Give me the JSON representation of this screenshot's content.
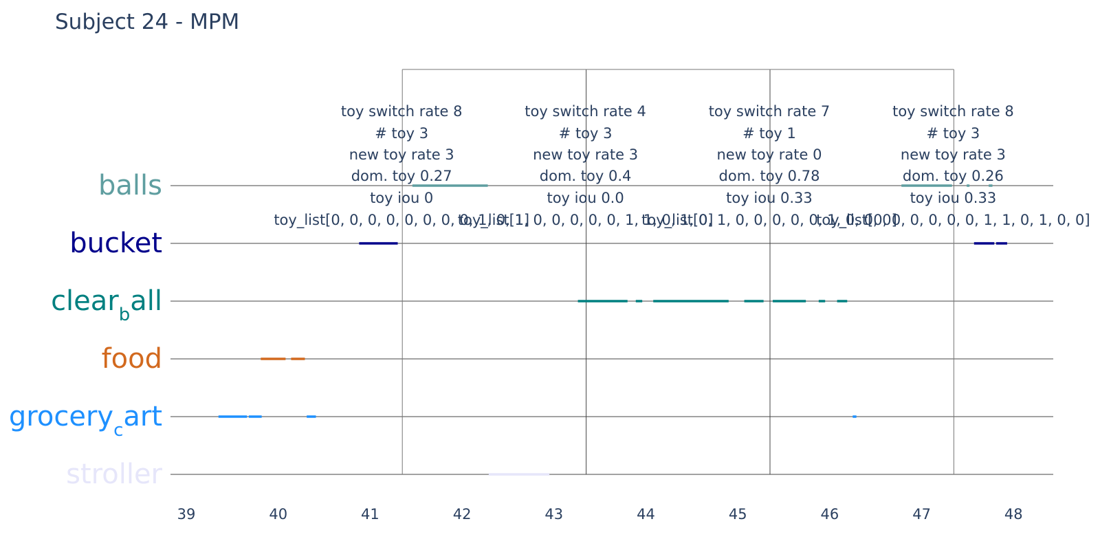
{
  "chart_data": {
    "type": "timeline",
    "title": "Subject 24 - MPM",
    "xlabel": "",
    "ylabel": "",
    "xlim": [
      38.85,
      48.45
    ],
    "x_ticks": [
      39,
      40,
      41,
      42,
      43,
      44,
      45,
      46,
      47,
      48
    ],
    "toys": [
      {
        "name": "balls",
        "label": "balls",
        "color": "#5f9ea0"
      },
      {
        "name": "bucket",
        "label": "bucket",
        "color": "#00008b"
      },
      {
        "name": "clear_ball",
        "label": "clear",
        "label_sub": "b",
        "label_rest": "all",
        "color": "#008080"
      },
      {
        "name": "food",
        "label": "food",
        "color": "#d2691e"
      },
      {
        "name": "grocery_cart",
        "label": "grocery",
        "label_sub": "c",
        "label_rest": "art",
        "color": "#1e90ff"
      },
      {
        "name": "stroller",
        "label": "stroller",
        "color": "#e6e6fa"
      }
    ],
    "segments": [
      {
        "toy": "grocery_cart",
        "start": 39.35,
        "end": 39.66
      },
      {
        "toy": "grocery_cart",
        "start": 39.68,
        "end": 39.82
      },
      {
        "toy": "grocery_cart",
        "start": 40.31,
        "end": 40.41
      },
      {
        "toy": "food",
        "start": 39.81,
        "end": 40.08
      },
      {
        "toy": "food",
        "start": 40.14,
        "end": 40.29
      },
      {
        "toy": "bucket",
        "start": 40.88,
        "end": 41.3
      },
      {
        "toy": "balls",
        "start": 41.46,
        "end": 42.28
      },
      {
        "toy": "stroller",
        "start": 42.29,
        "end": 42.95
      },
      {
        "toy": "clear_ball",
        "start": 43.26,
        "end": 43.8
      },
      {
        "toy": "clear_ball",
        "start": 43.89,
        "end": 43.96
      },
      {
        "toy": "clear_ball",
        "start": 44.08,
        "end": 44.9
      },
      {
        "toy": "clear_ball",
        "start": 45.07,
        "end": 45.28
      },
      {
        "toy": "clear_ball",
        "start": 45.38,
        "end": 45.74
      },
      {
        "toy": "clear_ball",
        "start": 45.88,
        "end": 45.95
      },
      {
        "toy": "clear_ball",
        "start": 46.08,
        "end": 46.19
      },
      {
        "toy": "grocery_cart",
        "start": 46.25,
        "end": 46.29
      },
      {
        "toy": "balls",
        "start": 46.78,
        "end": 47.33
      },
      {
        "toy": "balls",
        "start": 47.49,
        "end": 47.52
      },
      {
        "toy": "balls",
        "start": 47.73,
        "end": 47.77
      },
      {
        "toy": "bucket",
        "start": 47.57,
        "end": 47.79
      },
      {
        "toy": "bucket",
        "start": 47.81,
        "end": 47.93
      }
    ],
    "windows": [
      {
        "start": 41.35,
        "end": 43.35,
        "lines": [
          "toy switch rate 8",
          "# toy 3",
          "new toy rate 3",
          "dom. toy 0.27",
          "toy iou 0",
          "toy_list[0, 0, 0, 0, 0, 0, 0, 0, 1, 0, 1]"
        ]
      },
      {
        "start": 43.35,
        "end": 45.35,
        "lines": [
          "toy switch rate 4",
          "# toy 3",
          "new toy rate 3",
          "dom. toy 0.4",
          "toy iou 0.0",
          "toy_list[1, 0, 0, 0, 0, 0, 1, 1, 0, 1, 0]"
        ]
      },
      {
        "start": 45.35,
        "end": 47.35,
        "lines": [
          "toy switch rate 7",
          "# toy 1",
          "new toy rate 0",
          "dom. toy 0.78",
          "toy iou 0.33",
          "toy_list[0, 1, 0, 0, 0, 0, 0, 1, 0, 0, 0]"
        ]
      },
      {
        "start": 47.35,
        "end": 49.35,
        "lines": [
          "toy switch rate 8",
          "# toy 3",
          "new toy rate 3",
          "dom. toy 0.26",
          "toy iou 0.33",
          "toy_list[0, 0, 0, 0, 0, 0, 1, 1, 0, 1, 0, 0]"
        ]
      }
    ],
    "window_boundaries": [
      41.35,
      43.35,
      45.35,
      47.35
    ],
    "grid": true,
    "legend": "none"
  }
}
